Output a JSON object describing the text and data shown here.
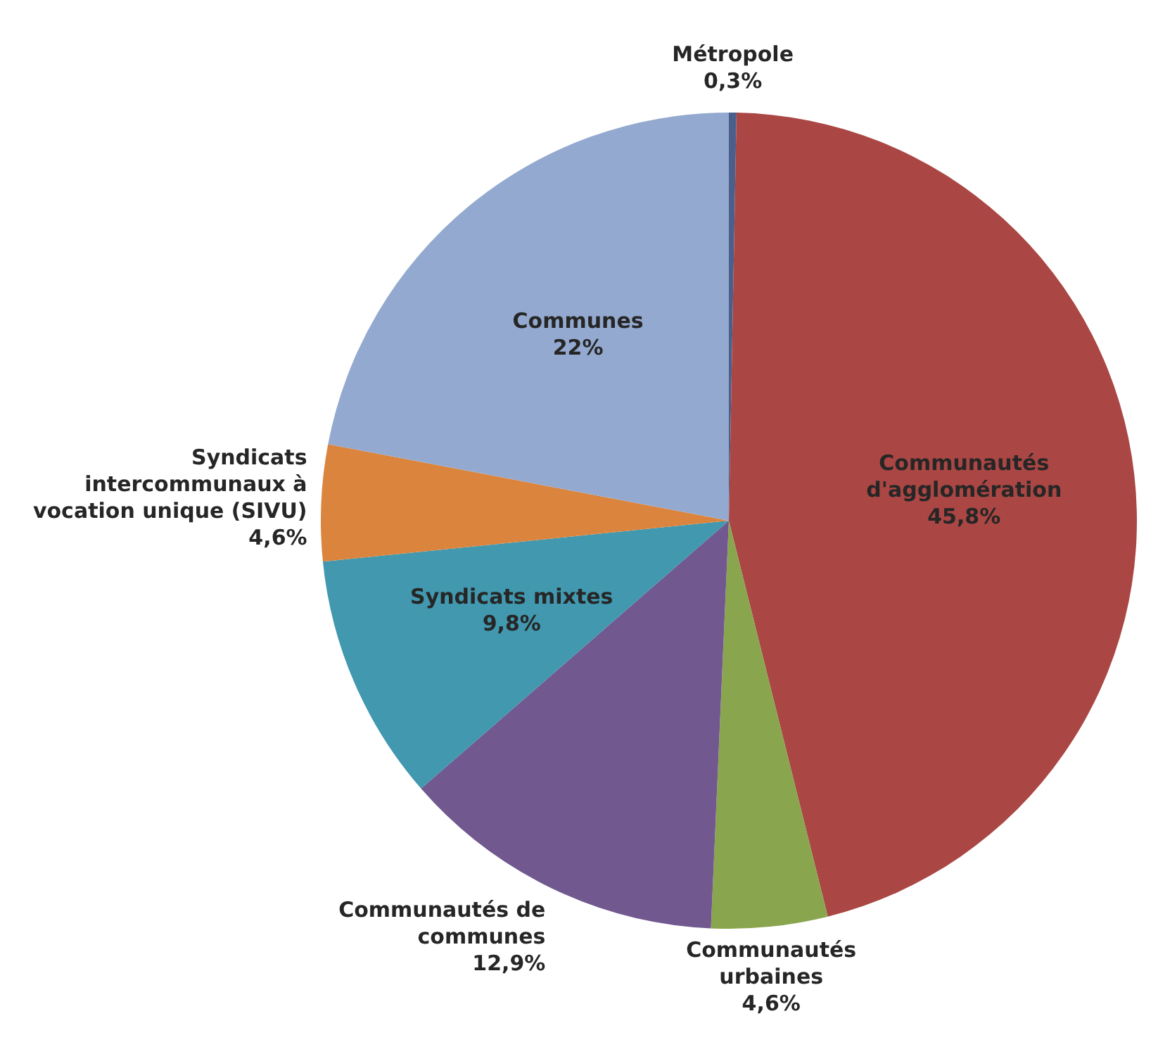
{
  "chart_data": {
    "type": "pie",
    "categories": [
      "Métropole",
      "Communautés d'agglomération",
      "Communautés urbaines",
      "Communautés de communes",
      "Syndicats mixtes",
      "Syndicats intercommunaux à vocation unique (SIVU)",
      "Communes"
    ],
    "values": [
      0.3,
      45.8,
      4.6,
      12.9,
      9.8,
      4.6,
      22
    ],
    "colors": [
      "#4a5f8c",
      "#aa4643",
      "#89a54e",
      "#71588f",
      "#4198af",
      "#db843d",
      "#93a9cf"
    ],
    "value_labels": [
      "0,3%",
      "45,8%",
      "4,6%",
      "12,9%",
      "9,8%",
      "4,6%",
      "22%"
    ]
  }
}
